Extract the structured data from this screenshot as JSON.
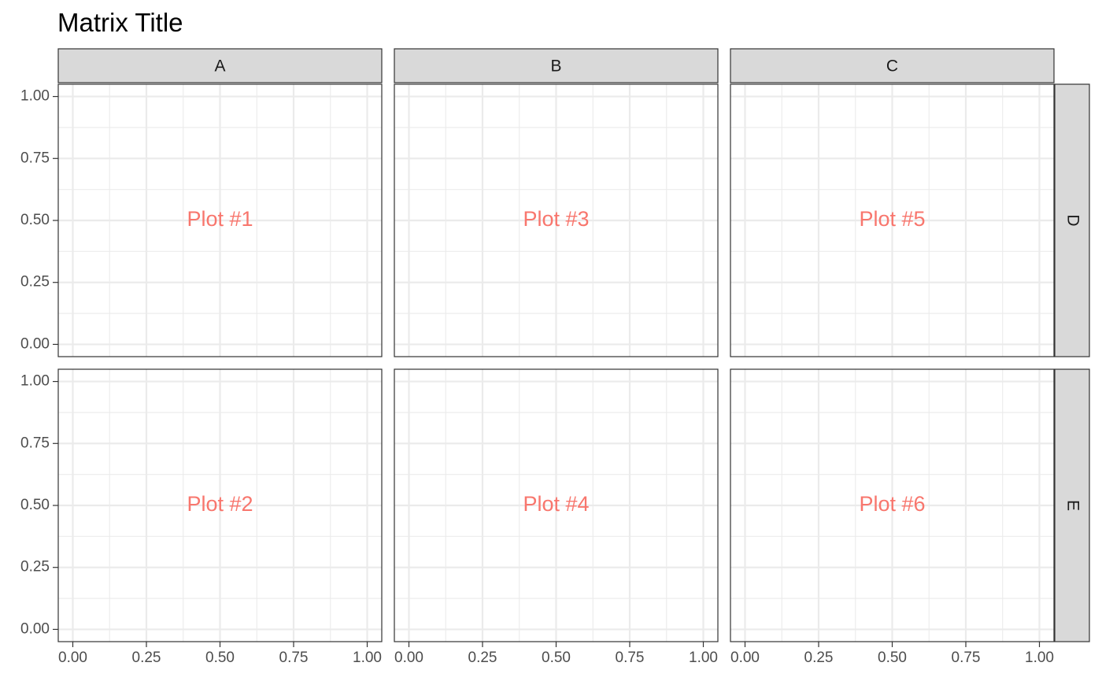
{
  "chart_data": {
    "type": "facet_grid",
    "title": "Matrix Title",
    "xlabel": "",
    "ylabel": "",
    "columns": [
      "A",
      "B",
      "C"
    ],
    "rows": [
      "D",
      "E"
    ],
    "xlim": [
      0,
      1
    ],
    "ylim": [
      0,
      1
    ],
    "x_ticks": [
      0.0,
      0.25,
      0.5,
      0.75,
      1.0
    ],
    "x_tick_labels": [
      "0.00",
      "0.25",
      "0.50",
      "0.75",
      "1.00"
    ],
    "y_ticks": [
      0.0,
      0.25,
      0.5,
      0.75,
      1.0
    ],
    "y_tick_labels": [
      "0.00",
      "0.25",
      "0.50",
      "0.75",
      "1.00"
    ],
    "grid": true,
    "label_color": "#F8766D",
    "panels": [
      {
        "column": "A",
        "row": "D",
        "label": "Plot #1",
        "x": 0.5,
        "y": 0.5
      },
      {
        "column": "A",
        "row": "E",
        "label": "Plot #2",
        "x": 0.5,
        "y": 0.5
      },
      {
        "column": "B",
        "row": "D",
        "label": "Plot #3",
        "x": 0.5,
        "y": 0.5
      },
      {
        "column": "B",
        "row": "E",
        "label": "Plot #4",
        "x": 0.5,
        "y": 0.5
      },
      {
        "column": "C",
        "row": "D",
        "label": "Plot #5",
        "x": 0.5,
        "y": 0.5
      },
      {
        "column": "C",
        "row": "E",
        "label": "Plot #6",
        "x": 0.5,
        "y": 0.5
      }
    ]
  }
}
